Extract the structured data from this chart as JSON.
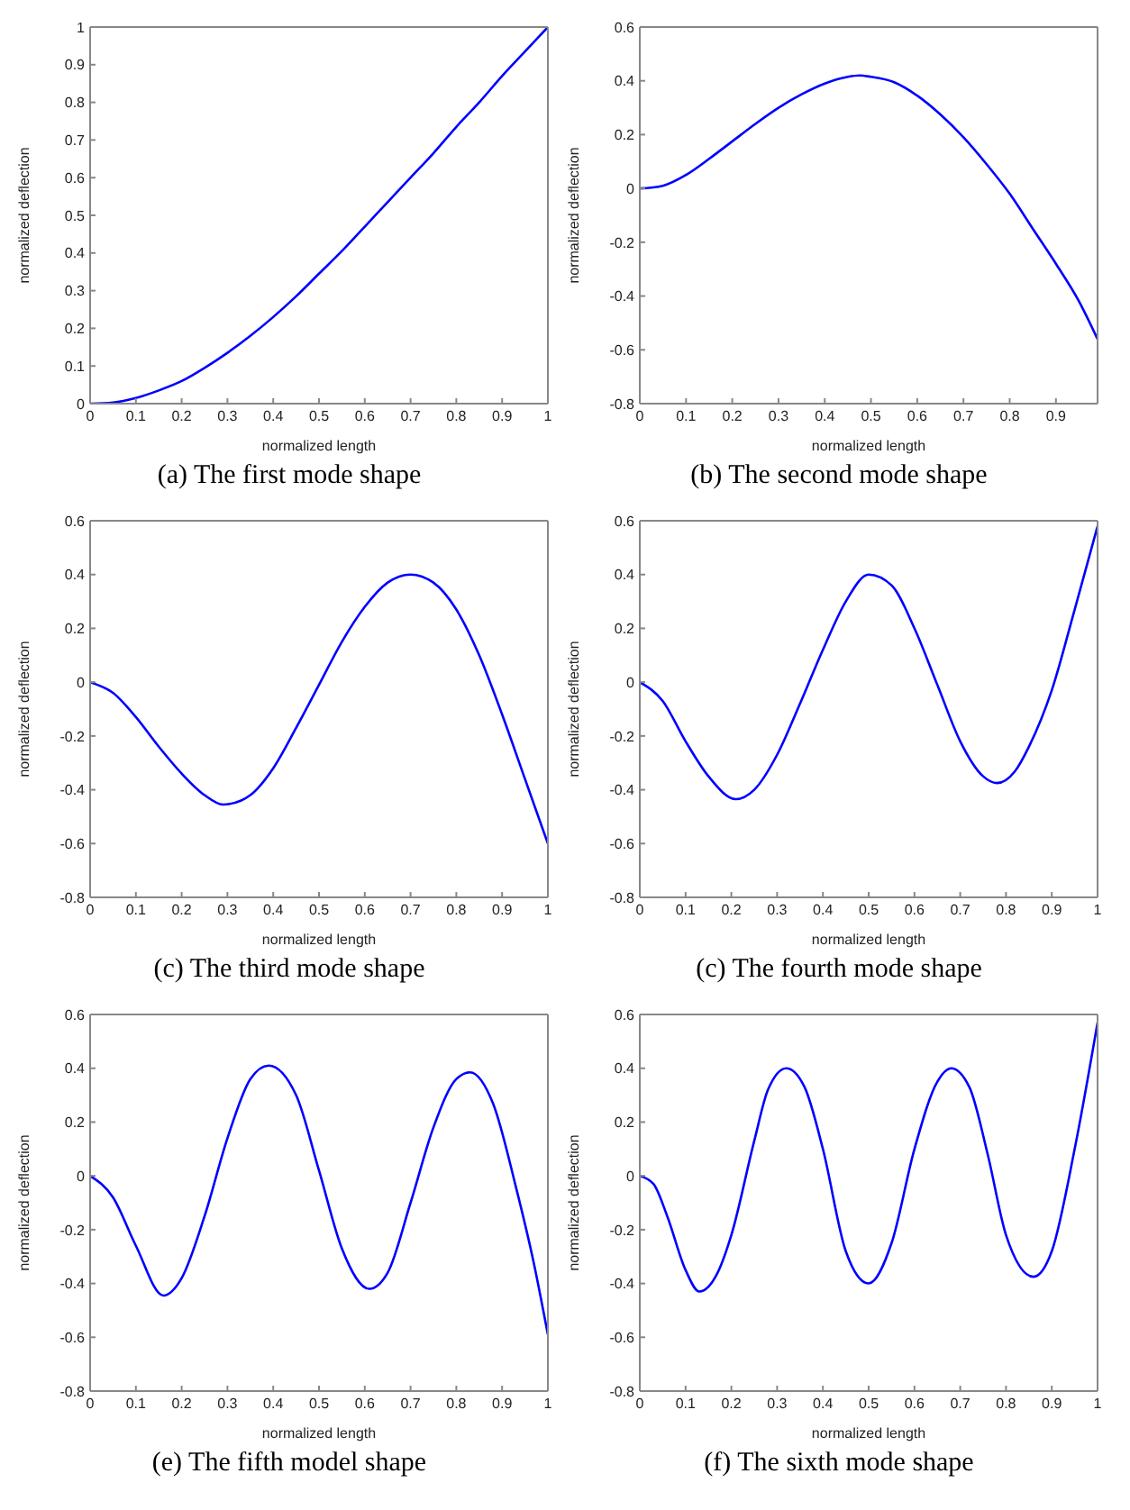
{
  "chart_data": [
    {
      "type": "line",
      "title": "(a) The first mode shape",
      "xlabel": "normalized length",
      "ylabel": "normalized deflection",
      "xlim": [
        0,
        1
      ],
      "xticks": [
        0,
        0.1,
        0.2,
        0.3,
        0.4,
        0.5,
        0.6,
        0.7,
        0.8,
        0.9,
        1
      ],
      "ylim": [
        0,
        1
      ],
      "yticks": [
        0,
        0.1,
        0.2,
        0.3,
        0.4,
        0.5,
        0.6,
        0.7,
        0.8,
        0.9,
        1
      ],
      "marker": "none",
      "line_style": "solid",
      "series": [
        {
          "color": "#0000ff",
          "x": [
            0,
            0.05,
            0.1,
            0.15,
            0.2,
            0.25,
            0.3,
            0.35,
            0.4,
            0.45,
            0.5,
            0.55,
            0.6,
            0.65,
            0.7,
            0.75,
            0.8,
            0.85,
            0.9,
            0.95,
            1
          ],
          "values": [
            0,
            0.003,
            0.015,
            0.035,
            0.06,
            0.095,
            0.135,
            0.18,
            0.23,
            0.285,
            0.345,
            0.405,
            0.47,
            0.535,
            0.6,
            0.665,
            0.735,
            0.8,
            0.87,
            0.935,
            1
          ]
        }
      ]
    },
    {
      "type": "line",
      "title": "(b) The second mode shape",
      "xlabel": "normalized length",
      "ylabel": "normalized deflection",
      "xlim": [
        0,
        0.99
      ],
      "xticks": [
        0,
        0.1,
        0.2,
        0.3,
        0.4,
        0.5,
        0.6,
        0.7,
        0.8,
        0.9
      ],
      "ylim": [
        -0.8,
        0.6
      ],
      "yticks": [
        -0.8,
        -0.6,
        -0.4,
        -0.2,
        0,
        0.2,
        0.4,
        0.6
      ],
      "marker": "none",
      "line_style": "solid",
      "series": [
        {
          "color": "#0000ff",
          "x": [
            0,
            0.05,
            0.1,
            0.15,
            0.2,
            0.25,
            0.3,
            0.35,
            0.4,
            0.45,
            0.475,
            0.5,
            0.55,
            0.6,
            0.65,
            0.7,
            0.75,
            0.8,
            0.85,
            0.9,
            0.95,
            0.99
          ],
          "values": [
            0,
            0.01,
            0.05,
            0.11,
            0.175,
            0.24,
            0.3,
            0.35,
            0.39,
            0.415,
            0.42,
            0.415,
            0.395,
            0.345,
            0.275,
            0.19,
            0.09,
            -0.02,
            -0.15,
            -0.28,
            -0.42,
            -0.56
          ]
        }
      ]
    },
    {
      "type": "line",
      "title": "(c) The third mode shape",
      "xlabel": "normalized length",
      "ylabel": "normalized deflection",
      "xlim": [
        0,
        1
      ],
      "xticks": [
        0,
        0.1,
        0.2,
        0.3,
        0.4,
        0.5,
        0.6,
        0.7,
        0.8,
        0.9,
        1
      ],
      "ylim": [
        -0.8,
        0.6
      ],
      "yticks": [
        -0.8,
        -0.6,
        -0.4,
        -0.2,
        0,
        0.2,
        0.4,
        0.6
      ],
      "marker": "none",
      "line_style": "solid",
      "series": [
        {
          "color": "#0000ff",
          "x": [
            0,
            0.05,
            0.1,
            0.15,
            0.2,
            0.25,
            0.29,
            0.33,
            0.35,
            0.4,
            0.45,
            0.5,
            0.55,
            0.6,
            0.65,
            0.7,
            0.75,
            0.8,
            0.85,
            0.9,
            0.95,
            1
          ],
          "values": [
            0,
            -0.04,
            -0.13,
            -0.24,
            -0.34,
            -0.42,
            -0.455,
            -0.44,
            -0.42,
            -0.32,
            -0.17,
            -0.01,
            0.15,
            0.28,
            0.37,
            0.4,
            0.37,
            0.27,
            0.1,
            -0.12,
            -0.36,
            -0.6
          ]
        }
      ]
    },
    {
      "type": "line",
      "title": "(c) The fourth mode shape",
      "xlabel": "normalized length",
      "ylabel": "normalized deflection",
      "xlim": [
        0,
        1
      ],
      "xticks": [
        0,
        0.1,
        0.2,
        0.3,
        0.4,
        0.5,
        0.6,
        0.7,
        0.8,
        0.9,
        1
      ],
      "ylim": [
        -0.8,
        0.6
      ],
      "yticks": [
        -0.8,
        -0.6,
        -0.4,
        -0.2,
        0,
        0.2,
        0.4,
        0.6
      ],
      "marker": "none",
      "line_style": "solid",
      "series": [
        {
          "color": "#0000ff",
          "x": [
            0,
            0.05,
            0.1,
            0.15,
            0.21,
            0.25,
            0.3,
            0.35,
            0.4,
            0.45,
            0.5,
            0.55,
            0.6,
            0.65,
            0.7,
            0.75,
            0.78,
            0.82,
            0.85,
            0.9,
            0.95,
            1
          ],
          "values": [
            0,
            -0.07,
            -0.22,
            -0.35,
            -0.435,
            -0.4,
            -0.27,
            -0.08,
            0.12,
            0.3,
            0.4,
            0.36,
            0.2,
            -0.01,
            -0.22,
            -0.35,
            -0.375,
            -0.33,
            -0.24,
            -0.03,
            0.27,
            0.58
          ]
        }
      ]
    },
    {
      "type": "line",
      "title": "(e) The fifth model shape",
      "xlabel": "normalized length",
      "ylabel": "normalized deflection",
      "xlim": [
        0,
        1
      ],
      "xticks": [
        0,
        0.1,
        0.2,
        0.3,
        0.4,
        0.5,
        0.6,
        0.7,
        0.8,
        0.9,
        1
      ],
      "ylim": [
        -0.8,
        0.6
      ],
      "yticks": [
        -0.8,
        -0.6,
        -0.4,
        -0.2,
        0,
        0.2,
        0.4,
        0.6
      ],
      "marker": "none",
      "line_style": "solid",
      "series": [
        {
          "color": "#0000ff",
          "x": [
            0,
            0.05,
            0.1,
            0.16,
            0.2,
            0.25,
            0.3,
            0.35,
            0.39,
            0.45,
            0.5,
            0.55,
            0.61,
            0.65,
            0.7,
            0.75,
            0.8,
            0.83,
            0.88,
            0.93,
            0.97,
            1
          ],
          "values": [
            0,
            -0.08,
            -0.26,
            -0.445,
            -0.38,
            -0.15,
            0.14,
            0.36,
            0.41,
            0.3,
            0.02,
            -0.27,
            -0.42,
            -0.36,
            -0.1,
            0.18,
            0.36,
            0.385,
            0.27,
            -0.04,
            -0.33,
            -0.59
          ]
        }
      ]
    },
    {
      "type": "line",
      "title": "(f) The sixth mode shape",
      "xlabel": "normalized length",
      "ylabel": "normalized deflection",
      "xlim": [
        0,
        1
      ],
      "xticks": [
        0,
        0.1,
        0.2,
        0.3,
        0.4,
        0.5,
        0.6,
        0.7,
        0.8,
        0.9,
        1
      ],
      "ylim": [
        -0.8,
        0.6
      ],
      "yticks": [
        -0.8,
        -0.6,
        -0.4,
        -0.2,
        0,
        0.2,
        0.4,
        0.6
      ],
      "marker": "none",
      "line_style": "solid",
      "series": [
        {
          "color": "#0000ff",
          "x": [
            0,
            0.03,
            0.06,
            0.1,
            0.13,
            0.17,
            0.2,
            0.25,
            0.28,
            0.32,
            0.36,
            0.4,
            0.45,
            0.5,
            0.55,
            0.6,
            0.65,
            0.68,
            0.72,
            0.76,
            0.8,
            0.86,
            0.9,
            0.95,
            1
          ],
          "values": [
            0,
            -0.03,
            -0.15,
            -0.35,
            -0.43,
            -0.36,
            -0.22,
            0.13,
            0.32,
            0.4,
            0.33,
            0.1,
            -0.28,
            -0.4,
            -0.25,
            0.1,
            0.35,
            0.4,
            0.33,
            0.08,
            -0.22,
            -0.375,
            -0.28,
            0.1,
            0.57
          ]
        }
      ]
    }
  ]
}
